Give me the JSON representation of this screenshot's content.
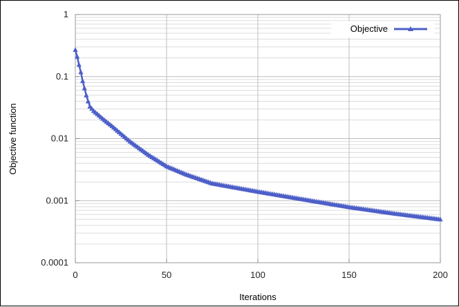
{
  "chart_data": {
    "type": "line",
    "xlabel": "Iterations",
    "ylabel": "Objective function",
    "xlim": [
      0,
      200
    ],
    "ylim": [
      0.0001,
      1
    ],
    "yscale": "log",
    "grid": true,
    "legend_position": "top-right",
    "x_ticks": [
      0,
      50,
      100,
      150,
      200
    ],
    "x_tick_labels": [
      "0",
      "50",
      "100",
      "150",
      "200"
    ],
    "y_ticks": [
      1,
      0.1,
      0.01,
      0.001,
      0.0001
    ],
    "y_tick_labels": [
      "1",
      "0.1",
      "0.01",
      "0.001",
      "0.0001"
    ],
    "series": [
      {
        "name": "Objective",
        "color": "#4d5fc8",
        "marker": "triangle",
        "x": [
          0,
          1,
          2,
          3,
          4,
          5,
          6,
          7,
          8,
          10,
          12,
          15,
          20,
          25,
          30,
          40,
          50,
          60,
          75,
          100,
          125,
          150,
          175,
          200
        ],
        "y": [
          0.27,
          0.21,
          0.155,
          0.118,
          0.085,
          0.065,
          0.05,
          0.04,
          0.033,
          0.028,
          0.025,
          0.021,
          0.016,
          0.012,
          0.009,
          0.0055,
          0.0036,
          0.0027,
          0.0019,
          0.0014,
          0.00105,
          0.00079,
          0.00062,
          0.0005
        ]
      }
    ]
  }
}
